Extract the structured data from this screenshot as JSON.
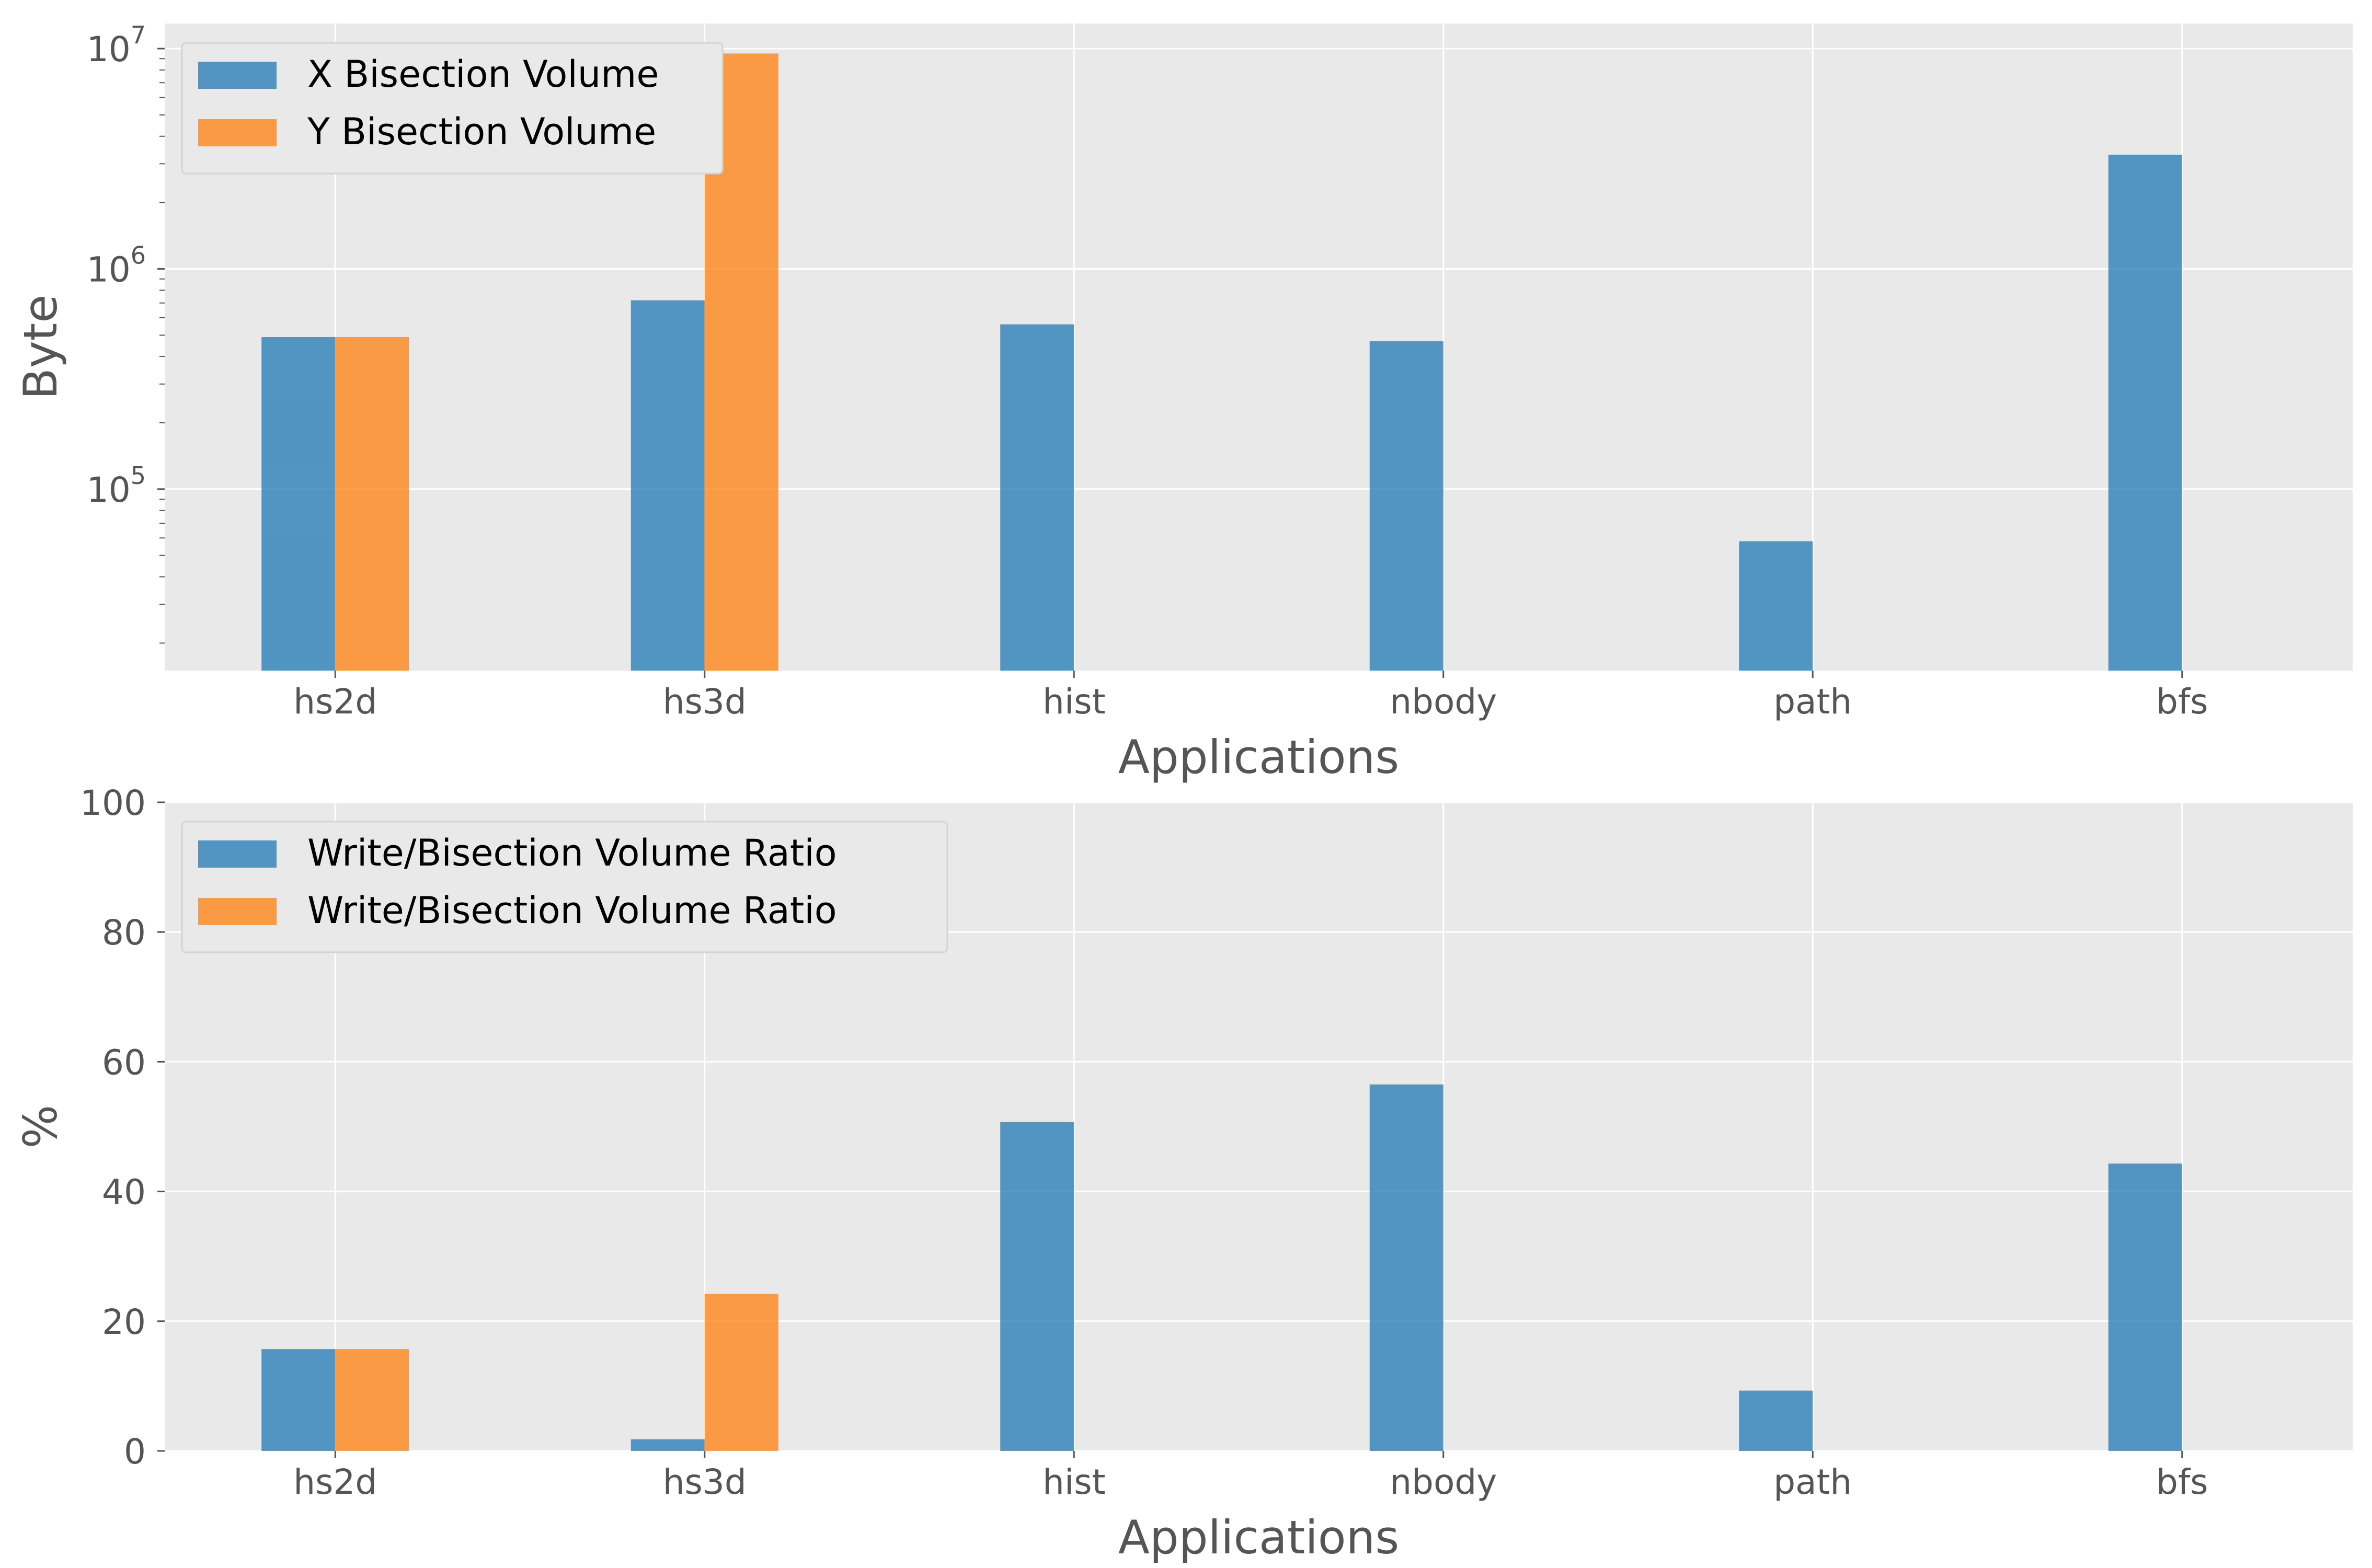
{
  "chart_data": [
    {
      "type": "bar",
      "categories": [
        "hs2d",
        "hs3d",
        "hist",
        "nbody",
        "path",
        "bfs"
      ],
      "series": [
        {
          "name": "X Bisection Volume",
          "color": "#1f77b4",
          "values": [
            490000,
            720000,
            560000,
            470000,
            58000,
            3300000
          ]
        },
        {
          "name": "Y Bisection Volume",
          "color": "#ff7f0e",
          "values": [
            490000,
            9500000,
            null,
            null,
            null,
            null
          ]
        }
      ],
      "xlabel": "Applications",
      "ylabel": "Byte",
      "yscale": "log",
      "ylim": [
        15000,
        13000000
      ],
      "yticks": [
        {
          "value": 100000,
          "base": "10",
          "exp": "5"
        },
        {
          "value": 1000000,
          "base": "10",
          "exp": "6"
        },
        {
          "value": 10000000,
          "base": "10",
          "exp": "7"
        }
      ],
      "grid": true,
      "legend": "upper-left"
    },
    {
      "type": "bar",
      "categories": [
        "hs2d",
        "hs3d",
        "hist",
        "nbody",
        "path",
        "bfs"
      ],
      "series": [
        {
          "name": "Write/Bisection Volume Ratio",
          "color": "#1f77b4",
          "values": [
            15.7,
            1.8,
            50.7,
            56.5,
            9.3,
            44.3
          ]
        },
        {
          "name": "Write/Bisection Volume Ratio",
          "color": "#ff7f0e",
          "values": [
            15.7,
            24.2,
            null,
            null,
            null,
            null
          ]
        }
      ],
      "xlabel": "Applications",
      "ylabel": "%",
      "yscale": "linear",
      "ylim": [
        0,
        100
      ],
      "yticks": [
        0,
        20,
        40,
        60,
        80,
        100
      ],
      "grid": true,
      "legend": "upper-left"
    }
  ]
}
